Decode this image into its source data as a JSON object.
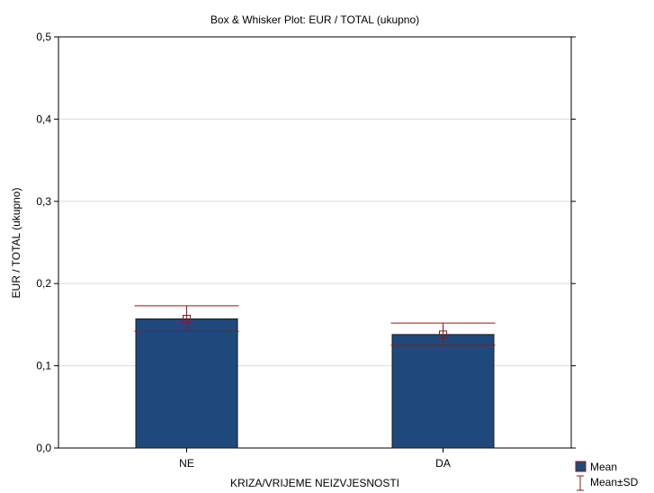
{
  "chart_data": {
    "type": "bar",
    "title": "Box & Whisker Plot: EUR / TOTAL  (ukupno)",
    "xlabel": "KRIZA/VRIJEME NEIZVJESNOSTI",
    "ylabel": "EUR / TOTAL  (ukupno)",
    "categories": [
      "NE",
      "DA"
    ],
    "series": [
      {
        "name": "Mean",
        "values": [
          0.157,
          0.138
        ]
      }
    ],
    "sd_low": [
      0.142,
      0.125
    ],
    "sd_high": [
      0.173,
      0.152
    ],
    "ylim": [
      0,
      0.5
    ],
    "yticks": [
      "0,0",
      "0,1",
      "0,2",
      "0,3",
      "0,4",
      "0,5"
    ],
    "grid": true,
    "legend": {
      "position": "bottom-right",
      "items": [
        "Mean",
        "Mean±SD"
      ]
    },
    "colors": {
      "bar": "#1f497d",
      "mean_marker": "#8b1a1a",
      "whisker": "#8b1a1a",
      "grid": "#dcdcdc",
      "axis": "#000000"
    }
  }
}
